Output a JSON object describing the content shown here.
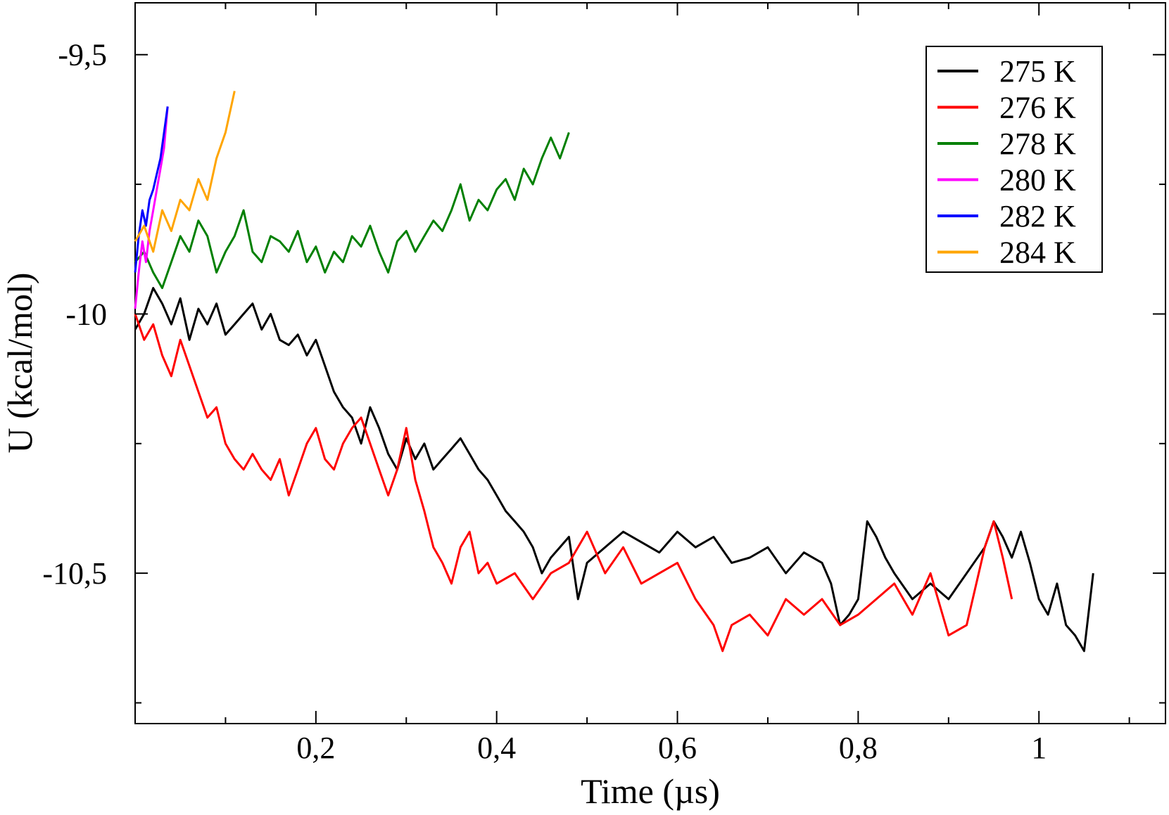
{
  "chart_data": {
    "type": "line",
    "xlabel": "Time (µs)",
    "ylabel": "U (kcal/mol)",
    "xlim": [
      0,
      1.14
    ],
    "ylim": [
      -10.79,
      -9.4
    ],
    "x_ticks": [
      {
        "value": 0.2,
        "label": "0,2"
      },
      {
        "value": 0.4,
        "label": "0,4"
      },
      {
        "value": 0.6,
        "label": "0,6"
      },
      {
        "value": 0.8,
        "label": "0,8"
      },
      {
        "value": 1.0,
        "label": "1"
      }
    ],
    "x_minor_ticks": [
      0.1,
      0.3,
      0.5,
      0.7,
      0.9,
      1.1
    ],
    "y_ticks": [
      {
        "value": -9.5,
        "label": "-9,5"
      },
      {
        "value": -10.0,
        "label": "-10"
      },
      {
        "value": -10.5,
        "label": "-10,5"
      }
    ],
    "y_minor_ticks": [
      -9.75,
      -10.25,
      -10.75
    ],
    "grid": false,
    "legend_position": "top-right",
    "series": [
      {
        "name": "275 K",
        "color": "#000000",
        "x": [
          0.0,
          0.01,
          0.02,
          0.03,
          0.04,
          0.05,
          0.06,
          0.07,
          0.08,
          0.09,
          0.1,
          0.11,
          0.12,
          0.13,
          0.14,
          0.15,
          0.16,
          0.17,
          0.18,
          0.19,
          0.2,
          0.21,
          0.22,
          0.23,
          0.24,
          0.25,
          0.26,
          0.27,
          0.28,
          0.29,
          0.3,
          0.31,
          0.32,
          0.33,
          0.34,
          0.35,
          0.36,
          0.37,
          0.38,
          0.39,
          0.4,
          0.41,
          0.42,
          0.43,
          0.44,
          0.45,
          0.46,
          0.47,
          0.48,
          0.49,
          0.5,
          0.52,
          0.54,
          0.56,
          0.58,
          0.6,
          0.62,
          0.64,
          0.66,
          0.68,
          0.7,
          0.72,
          0.74,
          0.76,
          0.77,
          0.78,
          0.79,
          0.8,
          0.81,
          0.82,
          0.83,
          0.84,
          0.86,
          0.88,
          0.9,
          0.92,
          0.94,
          0.95,
          0.96,
          0.97,
          0.98,
          0.99,
          1.0,
          1.01,
          1.02,
          1.03,
          1.04,
          1.05,
          1.06
        ],
        "y": [
          -10.03,
          -10.0,
          -9.95,
          -9.98,
          -10.02,
          -9.97,
          -10.05,
          -9.99,
          -10.02,
          -9.98,
          -10.04,
          -10.02,
          -10.0,
          -9.98,
          -10.03,
          -10.0,
          -10.05,
          -10.06,
          -10.04,
          -10.08,
          -10.05,
          -10.1,
          -10.15,
          -10.18,
          -10.2,
          -10.25,
          -10.18,
          -10.22,
          -10.27,
          -10.3,
          -10.24,
          -10.28,
          -10.25,
          -10.3,
          -10.28,
          -10.26,
          -10.24,
          -10.27,
          -10.3,
          -10.32,
          -10.35,
          -10.38,
          -10.4,
          -10.42,
          -10.45,
          -10.5,
          -10.47,
          -10.45,
          -10.43,
          -10.55,
          -10.48,
          -10.45,
          -10.42,
          -10.44,
          -10.46,
          -10.42,
          -10.45,
          -10.43,
          -10.48,
          -10.47,
          -10.45,
          -10.5,
          -10.46,
          -10.48,
          -10.52,
          -10.6,
          -10.58,
          -10.55,
          -10.4,
          -10.43,
          -10.47,
          -10.5,
          -10.55,
          -10.52,
          -10.55,
          -10.5,
          -10.45,
          -10.4,
          -10.43,
          -10.47,
          -10.42,
          -10.48,
          -10.55,
          -10.58,
          -10.52,
          -10.6,
          -10.62,
          -10.65,
          -10.5
        ]
      },
      {
        "name": "276 K",
        "color": "#ff0000",
        "x": [
          0.0,
          0.01,
          0.02,
          0.03,
          0.04,
          0.05,
          0.06,
          0.07,
          0.08,
          0.09,
          0.1,
          0.11,
          0.12,
          0.13,
          0.14,
          0.15,
          0.16,
          0.17,
          0.18,
          0.19,
          0.2,
          0.21,
          0.22,
          0.23,
          0.24,
          0.25,
          0.26,
          0.27,
          0.28,
          0.29,
          0.3,
          0.31,
          0.32,
          0.33,
          0.34,
          0.35,
          0.36,
          0.37,
          0.38,
          0.39,
          0.4,
          0.42,
          0.44,
          0.46,
          0.48,
          0.5,
          0.52,
          0.54,
          0.56,
          0.58,
          0.6,
          0.62,
          0.64,
          0.65,
          0.66,
          0.68,
          0.7,
          0.72,
          0.74,
          0.76,
          0.78,
          0.8,
          0.82,
          0.84,
          0.86,
          0.88,
          0.9,
          0.92,
          0.94,
          0.95,
          0.96,
          0.97
        ],
        "y": [
          -10.0,
          -10.05,
          -10.02,
          -10.08,
          -10.12,
          -10.05,
          -10.1,
          -10.15,
          -10.2,
          -10.18,
          -10.25,
          -10.28,
          -10.3,
          -10.27,
          -10.3,
          -10.32,
          -10.28,
          -10.35,
          -10.3,
          -10.25,
          -10.22,
          -10.28,
          -10.3,
          -10.25,
          -10.22,
          -10.2,
          -10.25,
          -10.3,
          -10.35,
          -10.3,
          -10.22,
          -10.32,
          -10.38,
          -10.45,
          -10.48,
          -10.52,
          -10.45,
          -10.42,
          -10.5,
          -10.48,
          -10.52,
          -10.5,
          -10.55,
          -10.5,
          -10.48,
          -10.42,
          -10.5,
          -10.45,
          -10.52,
          -10.5,
          -10.48,
          -10.55,
          -10.6,
          -10.65,
          -10.6,
          -10.58,
          -10.62,
          -10.55,
          -10.58,
          -10.55,
          -10.6,
          -10.58,
          -10.55,
          -10.52,
          -10.58,
          -10.5,
          -10.62,
          -10.6,
          -10.45,
          -10.4,
          -10.47,
          -10.55
        ]
      },
      {
        "name": "278 K",
        "color": "#008000",
        "x": [
          0.0,
          0.01,
          0.02,
          0.03,
          0.04,
          0.05,
          0.06,
          0.07,
          0.08,
          0.09,
          0.1,
          0.11,
          0.12,
          0.13,
          0.14,
          0.15,
          0.16,
          0.17,
          0.18,
          0.19,
          0.2,
          0.21,
          0.22,
          0.23,
          0.24,
          0.25,
          0.26,
          0.27,
          0.28,
          0.29,
          0.3,
          0.31,
          0.32,
          0.33,
          0.34,
          0.35,
          0.36,
          0.37,
          0.38,
          0.39,
          0.4,
          0.41,
          0.42,
          0.43,
          0.44,
          0.45,
          0.46,
          0.47,
          0.48
        ],
        "y": [
          -9.9,
          -9.88,
          -9.92,
          -9.95,
          -9.9,
          -9.85,
          -9.88,
          -9.82,
          -9.85,
          -9.92,
          -9.88,
          -9.85,
          -9.8,
          -9.88,
          -9.9,
          -9.85,
          -9.86,
          -9.88,
          -9.84,
          -9.9,
          -9.87,
          -9.92,
          -9.88,
          -9.9,
          -9.85,
          -9.87,
          -9.83,
          -9.88,
          -9.92,
          -9.86,
          -9.84,
          -9.88,
          -9.85,
          -9.82,
          -9.84,
          -9.8,
          -9.75,
          -9.82,
          -9.78,
          -9.8,
          -9.76,
          -9.74,
          -9.78,
          -9.72,
          -9.75,
          -9.7,
          -9.66,
          -9.7,
          -9.65
        ]
      },
      {
        "name": "280 K",
        "color": "#ff00ff",
        "x": [
          0.0,
          0.004,
          0.008,
          0.012,
          0.016,
          0.02,
          0.024,
          0.028,
          0.032,
          0.036
        ],
        "y": [
          -9.99,
          -9.92,
          -9.86,
          -9.9,
          -9.84,
          -9.8,
          -9.76,
          -9.72,
          -9.68,
          -9.6
        ]
      },
      {
        "name": "282 K",
        "color": "#0000ff",
        "x": [
          0.0,
          0.004,
          0.008,
          0.012,
          0.016,
          0.02,
          0.024,
          0.028,
          0.032,
          0.036
        ],
        "y": [
          -9.92,
          -9.85,
          -9.8,
          -9.83,
          -9.78,
          -9.76,
          -9.73,
          -9.7,
          -9.65,
          -9.6
        ]
      },
      {
        "name": "284 K",
        "color": "#ffa500",
        "x": [
          0.0,
          0.01,
          0.02,
          0.03,
          0.04,
          0.05,
          0.06,
          0.07,
          0.08,
          0.09,
          0.1,
          0.11
        ],
        "y": [
          -9.86,
          -9.83,
          -9.88,
          -9.8,
          -9.84,
          -9.78,
          -9.8,
          -9.74,
          -9.78,
          -9.7,
          -9.65,
          -9.57
        ]
      }
    ]
  }
}
